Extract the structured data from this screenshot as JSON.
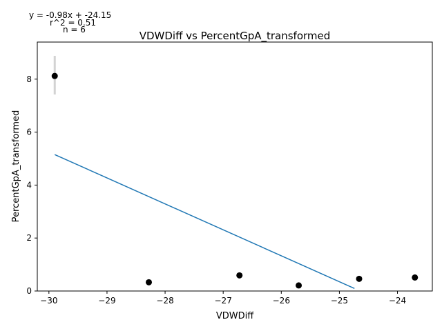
{
  "chart_data": {
    "type": "scatter",
    "title": "VDWDiff vs PercentGpA_transformed",
    "xlabel": "VDWDiff",
    "ylabel": "PercentGpA_transformed",
    "xlim": [
      -30.2,
      -23.4
    ],
    "ylim": [
      0,
      9.4
    ],
    "xticks": [
      -30,
      -29,
      -28,
      -27,
      -26,
      -25,
      -24
    ],
    "xtick_labels": [
      "−30",
      "−29",
      "−28",
      "−27",
      "−26",
      "−25",
      "−24"
    ],
    "yticks": [
      0,
      2,
      4,
      6,
      8
    ],
    "ytick_labels": [
      "0",
      "2",
      "4",
      "6",
      "8"
    ],
    "grid": false,
    "points": [
      {
        "x": -29.9,
        "y": 8.12
      },
      {
        "x": -28.28,
        "y": 0.33
      },
      {
        "x": -26.72,
        "y": 0.59
      },
      {
        "x": -25.7,
        "y": 0.21
      },
      {
        "x": -24.66,
        "y": 0.46
      },
      {
        "x": -23.7,
        "y": 0.51
      }
    ],
    "error_bars": [
      {
        "x": -29.9,
        "y_low": 7.42,
        "y_high": 8.88
      }
    ],
    "fit_line": {
      "slope": -0.98,
      "intercept": -24.15,
      "x_start": -29.9,
      "x_end": -24.74
    },
    "annotations": [
      "y = -0.98x + -24.15",
      "r^2 = 0.51",
      "n = 6"
    ],
    "colors": {
      "points": "#000000",
      "fit_line": "#1f77b4",
      "error_bar": "#d3d3d3"
    }
  }
}
